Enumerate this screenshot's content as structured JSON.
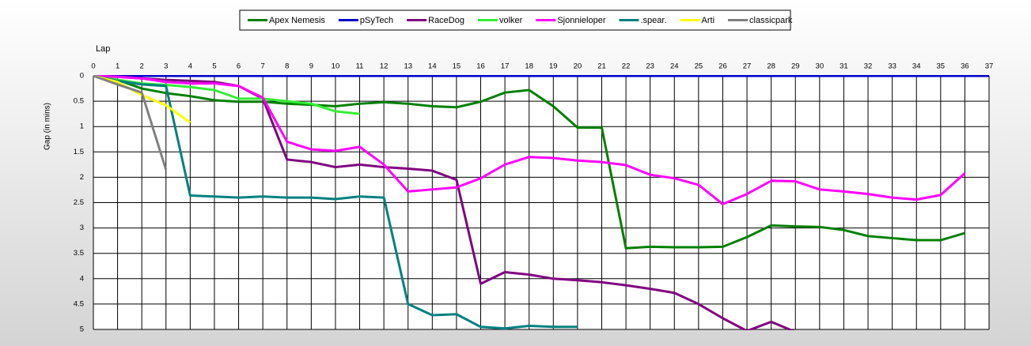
{
  "chart_data": {
    "type": "line",
    "x_label": "Lap",
    "y_label": "Gap (in mins)",
    "x": [
      0,
      1,
      2,
      3,
      4,
      5,
      6,
      7,
      8,
      9,
      10,
      11,
      12,
      13,
      14,
      15,
      16,
      17,
      18,
      19,
      20,
      21,
      22,
      23,
      24,
      25,
      26,
      27,
      28,
      29,
      30,
      31,
      32,
      33,
      34,
      35,
      36,
      37
    ],
    "xlim": [
      0,
      37
    ],
    "xticks": [
      0,
      1,
      2,
      3,
      4,
      5,
      6,
      7,
      8,
      9,
      10,
      11,
      12,
      13,
      14,
      15,
      16,
      17,
      18,
      19,
      20,
      21,
      22,
      23,
      24,
      25,
      26,
      27,
      28,
      29,
      30,
      31,
      32,
      33,
      34,
      35,
      36,
      37
    ],
    "ylim": [
      0,
      5
    ],
    "yticks": [
      0,
      0.5,
      1,
      1.5,
      2,
      2.5,
      3,
      3.5,
      4,
      4.5,
      5
    ],
    "y_inverted": true,
    "grid": true,
    "legend": "top",
    "series": [
      {
        "name": "Apex Nemesis",
        "color": "#008000",
        "values": [
          0,
          0.08,
          0.25,
          0.34,
          0.4,
          0.48,
          0.51,
          0.51,
          0.55,
          0.57,
          0.6,
          0.55,
          0.52,
          0.55,
          0.6,
          0.62,
          0.51,
          0.33,
          0.28,
          0.6,
          1.02,
          1.02,
          3.4,
          3.37,
          3.38,
          3.38,
          3.37,
          3.18,
          2.95,
          2.97,
          2.98,
          3.04,
          3.16,
          3.2,
          3.24,
          3.24,
          3.1,
          null
        ]
      },
      {
        "name": "pSyTech",
        "color": "#0000c8",
        "values": [
          0,
          0,
          0,
          0,
          0,
          0,
          0,
          0,
          0,
          0,
          0,
          0,
          0,
          0,
          0,
          0,
          0,
          0,
          0,
          0,
          0,
          0,
          0,
          0,
          0,
          0,
          0,
          0,
          0,
          0,
          0,
          0,
          0,
          0,
          0,
          0,
          0,
          0
        ]
      },
      {
        "name": "RaceDog",
        "color": "#800080",
        "values": [
          0,
          0.02,
          0.05,
          0.08,
          0.1,
          0.12,
          0.2,
          0.45,
          1.65,
          1.7,
          1.8,
          1.75,
          1.8,
          1.83,
          1.87,
          2.05,
          4.1,
          3.87,
          3.92,
          4.0,
          4.03,
          4.07,
          4.13,
          4.2,
          4.28,
          4.5,
          4.78,
          5.03,
          4.85,
          5.05,
          null,
          null,
          null,
          null,
          null,
          null,
          null,
          null
        ]
      },
      {
        "name": "volker",
        "color": "#33ee33",
        "values": [
          0,
          0.08,
          0.15,
          0.18,
          0.22,
          0.28,
          0.45,
          0.45,
          0.5,
          0.55,
          0.7,
          0.75,
          null,
          null,
          null,
          null,
          null,
          null,
          null,
          null,
          null,
          null,
          null,
          null,
          null,
          null,
          null,
          null,
          null,
          null,
          null,
          null,
          null,
          null,
          null,
          null,
          null,
          null
        ]
      },
      {
        "name": "Sjonnieloper",
        "color": "#ff00ff",
        "values": [
          0,
          0.02,
          0.05,
          0.12,
          0.15,
          0.15,
          0.2,
          0.43,
          1.3,
          1.45,
          1.48,
          1.4,
          1.75,
          2.28,
          2.24,
          2.2,
          2.02,
          1.75,
          1.6,
          1.62,
          1.67,
          1.7,
          1.76,
          1.95,
          2.02,
          2.15,
          2.53,
          2.33,
          2.07,
          2.08,
          2.24,
          2.28,
          2.33,
          2.4,
          2.44,
          2.35,
          1.92,
          null
        ]
      },
      {
        "name": ".spear.",
        "color": "#008080",
        "values": [
          0,
          0.1,
          0.17,
          0.2,
          2.36,
          2.38,
          2.4,
          2.38,
          2.4,
          2.4,
          2.43,
          2.38,
          2.4,
          4.5,
          4.72,
          4.7,
          4.95,
          4.98,
          4.93,
          4.95,
          4.95,
          null,
          null,
          null,
          null,
          null,
          null,
          null,
          null,
          null,
          null,
          null,
          null,
          null,
          null,
          null,
          null,
          null
        ]
      },
      {
        "name": "Arti",
        "color": "#ffff00",
        "values": [
          0,
          0.12,
          0.38,
          0.58,
          0.92,
          null,
          null,
          null,
          null,
          null,
          null,
          null,
          null,
          null,
          null,
          null,
          null,
          null,
          null,
          null,
          null,
          null,
          null,
          null,
          null,
          null,
          null,
          null,
          null,
          null,
          null,
          null,
          null,
          null,
          null,
          null,
          null,
          null
        ]
      },
      {
        "name": "classicpark",
        "color": "#808080",
        "values": [
          0,
          0.17,
          0.33,
          1.85,
          null,
          null,
          null,
          null,
          null,
          null,
          null,
          null,
          null,
          null,
          null,
          null,
          null,
          null,
          null,
          null,
          null,
          null,
          null,
          null,
          null,
          null,
          null,
          null,
          null,
          null,
          null,
          null,
          null,
          null,
          null,
          null,
          null,
          null
        ]
      }
    ]
  }
}
